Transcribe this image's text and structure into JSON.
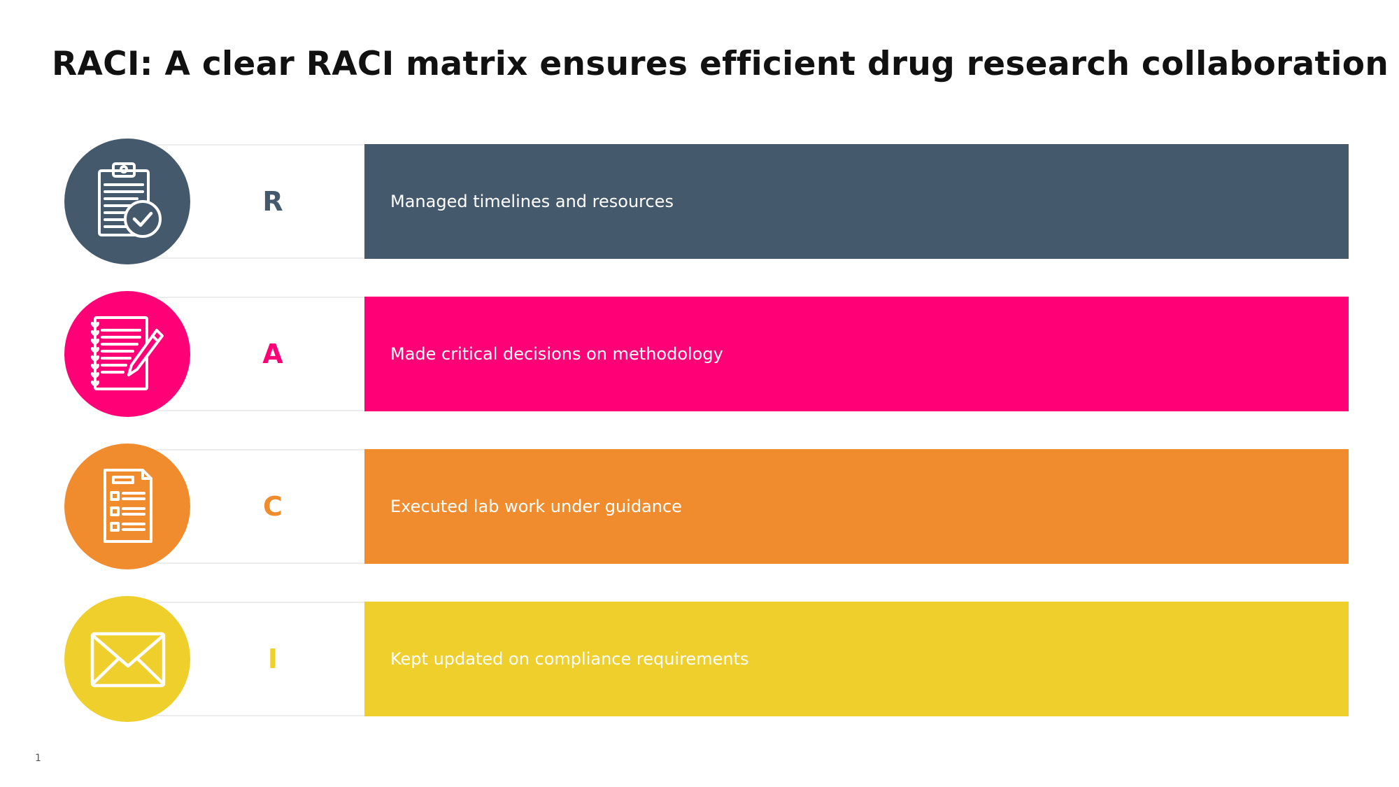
{
  "title": "RACI: A clear RACI matrix ensures efficient drug research collaboration",
  "rows": [
    {
      "letter": "R",
      "text": "Managed timelines and resources",
      "icon": "clipboard-check-icon",
      "color": "#445a6c"
    },
    {
      "letter": "A",
      "text": "Made critical decisions on methodology",
      "icon": "notebook-pencil-icon",
      "color": "#ff0077"
    },
    {
      "letter": "C",
      "text": "Executed lab work under guidance",
      "icon": "checklist-document-icon",
      "color": "#f08c2e"
    },
    {
      "letter": "I",
      "text": "Kept updated on compliance requirements",
      "icon": "envelope-icon",
      "color": "#eecf2b"
    }
  ],
  "page_number": "1"
}
